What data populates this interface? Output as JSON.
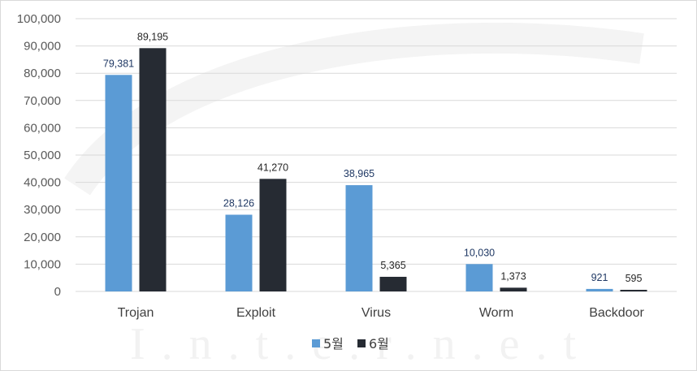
{
  "chart_data": {
    "type": "bar",
    "categories": [
      "Trojan",
      "Exploit",
      "Virus",
      "Worm",
      "Backdoor"
    ],
    "series": [
      {
        "name": "5월",
        "values": [
          79381,
          28126,
          38965,
          10030,
          921
        ],
        "labels": [
          "79,381",
          "28,126",
          "38,965",
          "10,030",
          "921"
        ],
        "color": "#5b9bd5",
        "label_color": "#1f3864"
      },
      {
        "name": "6월",
        "values": [
          89195,
          41270,
          5365,
          1373,
          595
        ],
        "labels": [
          "89,195",
          "41,270",
          "5,365",
          "1,373",
          "595"
        ],
        "color": "#262b33",
        "label_color": "#262626"
      }
    ],
    "ylim": [
      0,
      100000
    ],
    "yticks": [
      0,
      10000,
      20000,
      30000,
      40000,
      50000,
      60000,
      70000,
      80000,
      90000,
      100000
    ],
    "ytick_labels": [
      "0",
      "10,000",
      "20,000",
      "30,000",
      "40,000",
      "50,000",
      "60,000",
      "70,000",
      "80,000",
      "90,000",
      "100,000"
    ],
    "grid": true,
    "legend": "bottom",
    "gridline_color": "#d9d9d9"
  },
  "watermark": {
    "text": "I.n.t.e.r.n.e.t"
  }
}
